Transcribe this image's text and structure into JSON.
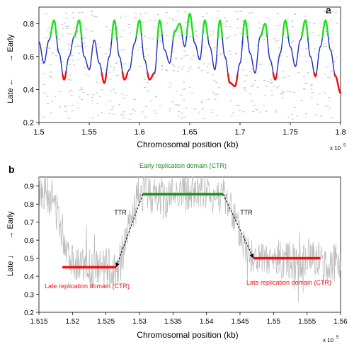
{
  "figure": {
    "x_multiplier_text": "x 10",
    "x_multiplier_exp": "5"
  },
  "chart_data": [
    {
      "panel_label": "a",
      "type": "line",
      "xlabel": "Chromosomal position (kb)",
      "ylabel_left": "Late ←",
      "ylabel_right": "→ Early",
      "xlim": [
        1.5,
        1.8
      ],
      "ylim": [
        0.2,
        0.9
      ],
      "xticks": [
        "1.5",
        "1.55",
        "1.6",
        "1.65",
        "1.7",
        "1.75",
        "1.8"
      ],
      "yticks": [
        "0.2",
        "0.4",
        "0.6",
        "0.8"
      ],
      "grid": false,
      "thresholds": {
        "early_above": 0.72,
        "late_below": 0.5
      },
      "colors": {
        "mid": "#1f2fbf",
        "early": "#22dd22",
        "late": "#ee1111",
        "background_dots": "#c8c8c8"
      },
      "series": [
        {
          "x": [
            1.5,
            1.505,
            1.51,
            1.515,
            1.52,
            1.525,
            1.53,
            1.535,
            1.54,
            1.545,
            1.55,
            1.555,
            1.56,
            1.565,
            1.57,
            1.575,
            1.58,
            1.585,
            1.59,
            1.595,
            1.6,
            1.605,
            1.61,
            1.615,
            1.62,
            1.625,
            1.63,
            1.635,
            1.64,
            1.645,
            1.65,
            1.655,
            1.66,
            1.665,
            1.67,
            1.675,
            1.68,
            1.685,
            1.69,
            1.695,
            1.7,
            1.705,
            1.71,
            1.715,
            1.72,
            1.725,
            1.73,
            1.735,
            1.74,
            1.745,
            1.75,
            1.755,
            1.76,
            1.765,
            1.77,
            1.775,
            1.78,
            1.785,
            1.79,
            1.795,
            1.8
          ],
          "y": [
            0.69,
            0.56,
            0.7,
            0.82,
            0.62,
            0.46,
            0.6,
            0.72,
            0.82,
            0.6,
            0.52,
            0.7,
            0.56,
            0.44,
            0.6,
            0.82,
            0.6,
            0.46,
            0.52,
            0.68,
            0.82,
            0.58,
            0.46,
            0.5,
            0.82,
            0.64,
            0.56,
            0.75,
            0.8,
            0.66,
            0.86,
            0.68,
            0.58,
            0.82,
            0.66,
            0.52,
            0.82,
            0.6,
            0.44,
            0.42,
            0.56,
            0.82,
            0.62,
            0.5,
            0.72,
            0.8,
            0.58,
            0.46,
            0.62,
            0.82,
            0.66,
            0.54,
            0.7,
            0.82,
            0.6,
            0.48,
            0.66,
            0.82,
            0.64,
            0.48,
            0.38
          ]
        }
      ]
    },
    {
      "panel_label": "b",
      "type": "line",
      "xlabel": "Chromosomal position (kb)",
      "ylabel_left": "Late ↓",
      "ylabel_right": "→ Early",
      "xlim": [
        1.515,
        1.56
      ],
      "ylim": [
        0.2,
        0.95
      ],
      "xticks": [
        "1.515",
        "1.52",
        "1.525",
        "1.53",
        "1.535",
        "1.54",
        "1.545",
        "1.55",
        "1.555",
        "1.56"
      ],
      "yticks": [
        "0.2",
        "0.3",
        "0.4",
        "0.5",
        "0.6",
        "0.7",
        "0.8",
        "0.9"
      ],
      "grid": false,
      "colors": {
        "signal": "#bdbdbd",
        "early": "#1e8c1e",
        "late": "#ee1111",
        "arrow": "#000000"
      },
      "signal": {
        "x": [
          1.515,
          1.516,
          1.517,
          1.518,
          1.519,
          1.52,
          1.521,
          1.522,
          1.523,
          1.524,
          1.525,
          1.526,
          1.527,
          1.528,
          1.529,
          1.53,
          1.531,
          1.532,
          1.533,
          1.534,
          1.535,
          1.536,
          1.537,
          1.538,
          1.539,
          1.54,
          1.541,
          1.542,
          1.543,
          1.544,
          1.545,
          1.546,
          1.547,
          1.548,
          1.549,
          1.55,
          1.551,
          1.552,
          1.553,
          1.554,
          1.555,
          1.556,
          1.557,
          1.558,
          1.559,
          1.56
        ],
        "y": [
          0.88,
          0.86,
          0.84,
          0.72,
          0.58,
          0.5,
          0.46,
          0.45,
          0.44,
          0.44,
          0.45,
          0.44,
          0.46,
          0.6,
          0.74,
          0.86,
          0.88,
          0.85,
          0.84,
          0.82,
          0.86,
          0.88,
          0.86,
          0.85,
          0.87,
          0.86,
          0.84,
          0.86,
          0.82,
          0.74,
          0.62,
          0.55,
          0.5,
          0.48,
          0.47,
          0.48,
          0.5,
          0.48,
          0.5,
          0.46,
          0.5,
          0.52,
          0.48,
          0.46,
          0.47,
          0.48
        ]
      },
      "segments": [
        {
          "name": "early-domain",
          "x": [
            1.5305,
            1.5425
          ],
          "y": 0.855,
          "label": "Early replication domain (CTR)"
        },
        {
          "name": "late-domain-left",
          "x": [
            1.5185,
            1.5265
          ],
          "y": 0.45,
          "label": "Late replication domain (CTR)"
        },
        {
          "name": "late-domain-right",
          "x": [
            1.547,
            1.557
          ],
          "y": 0.5,
          "label": "Late replication domain (CTR)"
        }
      ],
      "transitions": [
        {
          "label": "TTR",
          "from": [
            1.5265,
            0.45
          ],
          "to": [
            1.5305,
            0.855
          ]
        },
        {
          "label": "TTR",
          "from": [
            1.5425,
            0.855
          ],
          "to": [
            1.547,
            0.5
          ]
        }
      ]
    }
  ]
}
